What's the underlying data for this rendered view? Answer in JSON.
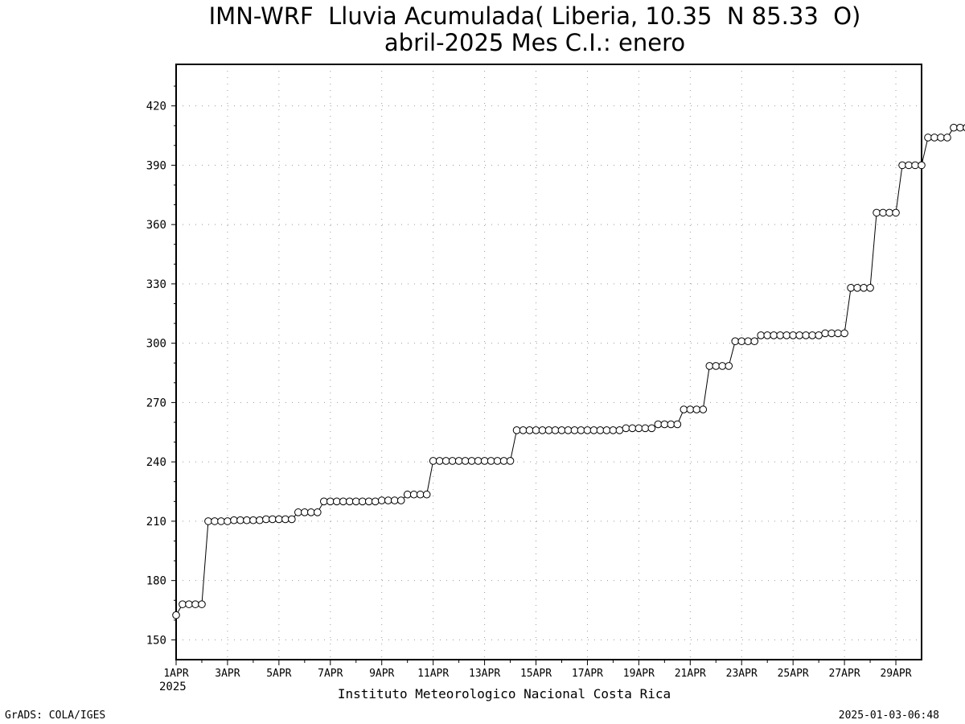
{
  "chart_data": {
    "type": "line",
    "title": "IMN-WRF  Lluvia Acumulada( Liberia, 10.35  N 85.33  O)",
    "subtitle": "abril-2025 Mes C.I.: enero",
    "xlabel": "Instituto Meteorologico Nacional Costa Rica",
    "ylabel": "",
    "x_year_label": "2025",
    "x_ticks": [
      "1APR",
      "3APR",
      "5APR",
      "7APR",
      "9APR",
      "11APR",
      "13APR",
      "15APR",
      "17APR",
      "19APR",
      "21APR",
      "23APR",
      "25APR",
      "27APR",
      "29APR"
    ],
    "y_ticks": [
      "150",
      "180",
      "210",
      "240",
      "270",
      "300",
      "330",
      "360",
      "390",
      "420"
    ],
    "ylim": [
      140,
      441
    ],
    "x_range_days": [
      0,
      29
    ],
    "step_hours": 6,
    "grid": true,
    "marker": "open-circle",
    "values": [
      162.5,
      168,
      168,
      168,
      168,
      210,
      210,
      210,
      210,
      210.5,
      210.5,
      210.5,
      210.5,
      210.5,
      211,
      211,
      211,
      211,
      211,
      214.5,
      214.5,
      214.5,
      214.5,
      220,
      220,
      220,
      220,
      220,
      220,
      220,
      220,
      220,
      220.5,
      220.5,
      220.5,
      220.5,
      223.5,
      223.5,
      223.5,
      223.5,
      240.5,
      240.5,
      240.5,
      240.5,
      240.5,
      240.5,
      240.5,
      240.5,
      240.5,
      240.5,
      240.5,
      240.5,
      240.5,
      256,
      256,
      256,
      256,
      256,
      256,
      256,
      256,
      256,
      256,
      256,
      256,
      256,
      256,
      256,
      256,
      256,
      257,
      257,
      257,
      257,
      257,
      259,
      259,
      259,
      259,
      266.5,
      266.5,
      266.5,
      266.5,
      288.5,
      288.5,
      288.5,
      288.5,
      301,
      301,
      301,
      301,
      304,
      304,
      304,
      304,
      304,
      304,
      304,
      304,
      304,
      304,
      305,
      305,
      305,
      305,
      328,
      328,
      328,
      328,
      366,
      366,
      366,
      366,
      390,
      390,
      390,
      390,
      404,
      404,
      404,
      404,
      409,
      409,
      409,
      409,
      409.5,
      409.5,
      409.5,
      409.5
    ]
  },
  "footer": {
    "left": "GrADS: COLA/IGES",
    "right": "2025-01-03-06:48"
  }
}
